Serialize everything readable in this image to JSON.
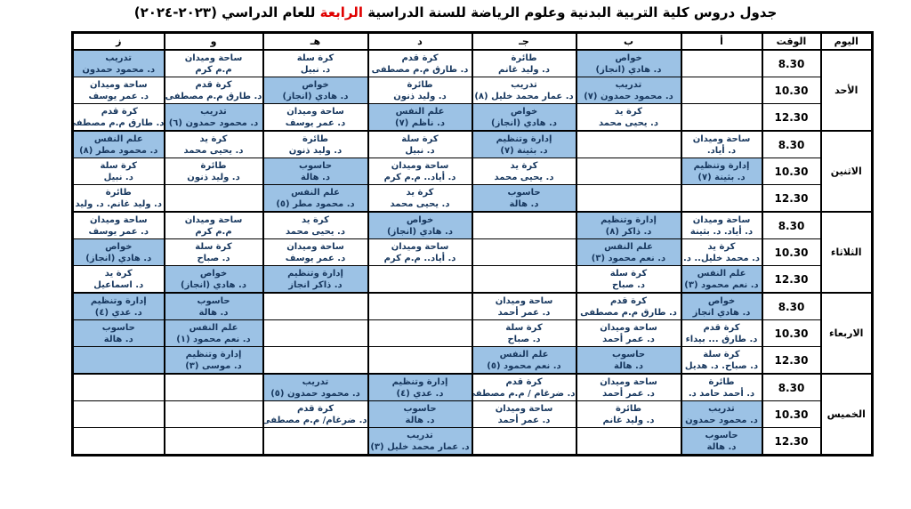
{
  "colors": {
    "highlight": "#9cc2e5",
    "cell_text": "#17375e",
    "title_red": "#e00000"
  },
  "title": {
    "prefix": "جدول دروس كلية التربية البدنية وعلوم الرياضة للسنة الدراسية ",
    "highlight": "الرابعة",
    "suffix": " للعام الدراسي (٢٠٢٣-٢٠٢٤)"
  },
  "table": {
    "header": {
      "day": "اليوم",
      "time": "الوقت",
      "groups": [
        "أ",
        "ب",
        "جـ",
        "د",
        "هـ",
        "و",
        "ز"
      ]
    },
    "days": [
      {
        "name": "الأحد",
        "rows": [
          {
            "time": "8.30",
            "cells": [
              null,
              {
                "subject": "خواص",
                "teacher": "د. هادي (انجاز)",
                "hl": true
              },
              {
                "subject": "طائرة",
                "teacher": "د. وليد غانم",
                "hl": false
              },
              {
                "subject": "كرة قدم",
                "teacher": "د. طارق م.م مصطفى",
                "hl": false
              },
              {
                "subject": "كرة سلة",
                "teacher": "د. نبيل",
                "hl": false
              },
              {
                "subject": "ساحة وميدان",
                "teacher": "م.م كرم",
                "hl": false
              },
              {
                "subject": "تدريب",
                "teacher": "د. محمود حمدون",
                "hl": true
              }
            ]
          },
          {
            "time": "10.30",
            "cells": [
              null,
              {
                "subject": "تدريب",
                "teacher": "د. محمود حمدون (٧)",
                "hl": true
              },
              {
                "subject": "تدريب",
                "teacher": "د. عمار محمد خليل (٨)",
                "hl": false
              },
              {
                "subject": "طائرة",
                "teacher": "د. وليد ذنون",
                "hl": false
              },
              {
                "subject": "خواص",
                "teacher": "د. هادي (انجاز)",
                "hl": true
              },
              {
                "subject": "كرة قدم",
                "teacher": "د. طارق م.م مصطفى",
                "hl": false
              },
              {
                "subject": "ساحة وميدان",
                "teacher": "د. عمر يوسف",
                "hl": false
              }
            ]
          },
          {
            "time": "12.30",
            "cells": [
              null,
              {
                "subject": "كرة يد",
                "teacher": "د. يحيى محمد",
                "hl": false
              },
              {
                "subject": "خواص",
                "teacher": "د. هادي (انجاز)",
                "hl": true
              },
              {
                "subject": "علم النفس",
                "teacher": "د. ناظم (٧)",
                "hl": true
              },
              {
                "subject": "ساحة وميدان",
                "teacher": "د. عمر يوسف",
                "hl": false
              },
              {
                "subject": "تدريب",
                "teacher": "د. محمود حمدون (٦)",
                "hl": true
              },
              {
                "subject": "كرة قدم",
                "teacher": "د. طارق م.م مصطفى",
                "hl": false
              }
            ]
          }
        ]
      },
      {
        "name": "الاثنين",
        "rows": [
          {
            "time": "8.30",
            "cells": [
              {
                "subject": "ساحة وميدان",
                "teacher": "د. أياد.",
                "hl": false
              },
              null,
              {
                "subject": "إدارة وتنظيم",
                "teacher": "د. بثينة (٧)",
                "hl": true
              },
              {
                "subject": "كرة سلة",
                "teacher": "د. نبيل",
                "hl": false
              },
              {
                "subject": "طائرة",
                "teacher": "د. وليد ذنون",
                "hl": false
              },
              {
                "subject": "كرة يد",
                "teacher": "د. يحيى محمد",
                "hl": false
              },
              {
                "subject": "علم النفس",
                "teacher": "د. محمود مطر (٨)",
                "hl": true
              }
            ]
          },
          {
            "time": "10.30",
            "cells": [
              {
                "subject": "إدارة وتنظيم",
                "teacher": "د. بثينة (٧)",
                "hl": true
              },
              null,
              {
                "subject": "كرة يد",
                "teacher": "د. يحيى محمد",
                "hl": false
              },
              {
                "subject": "ساحة وميدان",
                "teacher": "د. أياد.. م.م كرم",
                "hl": false
              },
              {
                "subject": "حاسوب",
                "teacher": "د. هالة",
                "hl": true
              },
              {
                "subject": "طائرة",
                "teacher": "د. وليد ذنون",
                "hl": false
              },
              {
                "subject": "كرة سلة",
                "teacher": "د. نبيل",
                "hl": false
              }
            ]
          },
          {
            "time": "12.30",
            "cells": [
              null,
              null,
              {
                "subject": "حاسوب",
                "teacher": "د. هالة",
                "hl": true
              },
              {
                "subject": "كرة يد",
                "teacher": "د. يحيى محمد",
                "hl": false
              },
              {
                "subject": "علم النفس",
                "teacher": "د. محمود مطر (٥)",
                "hl": true
              },
              null,
              {
                "subject": "طائرة",
                "teacher": "د. وليد غانم. د. وليد",
                "hl": false
              }
            ]
          }
        ]
      },
      {
        "name": "الثلاثاء",
        "rows": [
          {
            "time": "8.30",
            "cells": [
              {
                "subject": "ساحة وميدان",
                "teacher": "د. أياد. د. بثينة",
                "hl": false
              },
              {
                "subject": "إدارة وتنظيم",
                "teacher": "د. ذاكر (٨)",
                "hl": true
              },
              null,
              {
                "subject": "خواص",
                "teacher": "د. هادي (انجاز)",
                "hl": true
              },
              {
                "subject": "كرة يد",
                "teacher": "د. يحيى محمد",
                "hl": false
              },
              {
                "subject": "ساحة وميدان",
                "teacher": "م.م كرم",
                "hl": false
              },
              {
                "subject": "ساحة وميدان",
                "teacher": "د. عمر يوسف",
                "hl": false
              }
            ]
          },
          {
            "time": "10.30",
            "cells": [
              {
                "subject": "كرة يد",
                "teacher": "د. محمد خليل.. د.",
                "hl": false
              },
              {
                "subject": "علم النفس",
                "teacher": "د. نعم محمود (٣)",
                "hl": true
              },
              null,
              {
                "subject": "ساحة وميدان",
                "teacher": "د. أياد.. م.م كرم",
                "hl": false
              },
              {
                "subject": "ساحة وميدان",
                "teacher": "د. عمر يوسف",
                "hl": false
              },
              {
                "subject": "كرة سلة",
                "teacher": "د. صباح",
                "hl": false
              },
              {
                "subject": "خواص",
                "teacher": "د. هادي (انجاز)",
                "hl": true
              }
            ]
          },
          {
            "time": "12.30",
            "cells": [
              {
                "subject": "علم النفس",
                "teacher": "د. نعم محمود (٣)",
                "hl": true
              },
              {
                "subject": "كرة سلة",
                "teacher": "د. صباح",
                "hl": false
              },
              null,
              null,
              {
                "subject": "إدارة وتنظيم",
                "teacher": "د. ذاكر انجاز",
                "hl": true
              },
              {
                "subject": "خواص",
                "teacher": "د. هادي (انجاز)",
                "hl": true
              },
              {
                "subject": "كرة يد",
                "teacher": "د. اسماعيل",
                "hl": false
              }
            ]
          }
        ]
      },
      {
        "name": "الاربعاء",
        "rows": [
          {
            "time": "8.30",
            "cells": [
              {
                "subject": "خواص",
                "teacher": "د. هادي انجاز",
                "hl": true
              },
              {
                "subject": "كرة قدم",
                "teacher": "د. طارق م.م مصطفى",
                "hl": false
              },
              {
                "subject": "ساحة وميدان",
                "teacher": "د. عمر أحمد",
                "hl": false
              },
              null,
              null,
              {
                "subject": "حاسوب",
                "teacher": "د. هالة",
                "hl": true
              },
              {
                "subject": "إدارة وتنظيم",
                "teacher": "د. عدي (٤)",
                "hl": true
              }
            ]
          },
          {
            "time": "10.30",
            "cells": [
              {
                "subject": "كرة قدم",
                "teacher": "د. طارق ... بيداء",
                "hl": false
              },
              {
                "subject": "ساحة وميدان",
                "teacher": "د. عمر أحمد",
                "hl": false
              },
              {
                "subject": "كرة سلة",
                "teacher": "د. صباح",
                "hl": false
              },
              null,
              null,
              {
                "subject": "علم النفس",
                "teacher": "د. نعم محمود (١)",
                "hl": true
              },
              {
                "subject": "حاسوب",
                "teacher": "د. هالة",
                "hl": true
              }
            ]
          },
          {
            "time": "12.30",
            "cells": [
              {
                "subject": "كرة سلة",
                "teacher": "د. صباح. د. هديل",
                "hl": false
              },
              {
                "subject": "حاسوب",
                "teacher": "د. هالة",
                "hl": true
              },
              {
                "subject": "علم النفس",
                "teacher": "د. نعم محمود (٥)",
                "hl": true
              },
              null,
              null,
              {
                "subject": "إدارة وتنظيم",
                "teacher": "د. موسى (٣)",
                "hl": true
              },
              {
                "subject": "",
                "teacher": "",
                "hl": true
              }
            ]
          }
        ]
      },
      {
        "name": "الخميس",
        "rows": [
          {
            "time": "8.30",
            "cells": [
              {
                "subject": "طائرة",
                "teacher": "د. أحمد حامد د.",
                "hl": false
              },
              {
                "subject": "ساحة وميدان",
                "teacher": "د. عمر أحمد",
                "hl": false
              },
              {
                "subject": "كرة قدم",
                "teacher": "د. ضرغام / م.م مصطفى",
                "hl": false
              },
              {
                "subject": "إدارة وتنظيم",
                "teacher": "د. عدي (٤)",
                "hl": true
              },
              {
                "subject": "تدريب",
                "teacher": "د. محمود حمدون (٥)",
                "hl": true
              },
              null,
              null
            ]
          },
          {
            "time": "10.30",
            "cells": [
              {
                "subject": "تدريب",
                "teacher": "د. محمود حمدون",
                "hl": true
              },
              {
                "subject": "طائرة",
                "teacher": "د. وليد غانم",
                "hl": false
              },
              {
                "subject": "ساحة وميدان",
                "teacher": "د. عمر أحمد",
                "hl": false
              },
              {
                "subject": "حاسوب",
                "teacher": "د. هالة",
                "hl": true
              },
              {
                "subject": "كرة قدم",
                "teacher": "د. ضرغام/ م.م مصطفى",
                "hl": false
              },
              null,
              null
            ]
          },
          {
            "time": "12.30",
            "cells": [
              {
                "subject": "حاسوب",
                "teacher": "د. هالة",
                "hl": true
              },
              null,
              null,
              {
                "subject": "تدريب",
                "teacher": "د. عمار محمد خليل (٣)",
                "hl": true
              },
              null,
              null,
              null
            ]
          }
        ]
      }
    ]
  }
}
